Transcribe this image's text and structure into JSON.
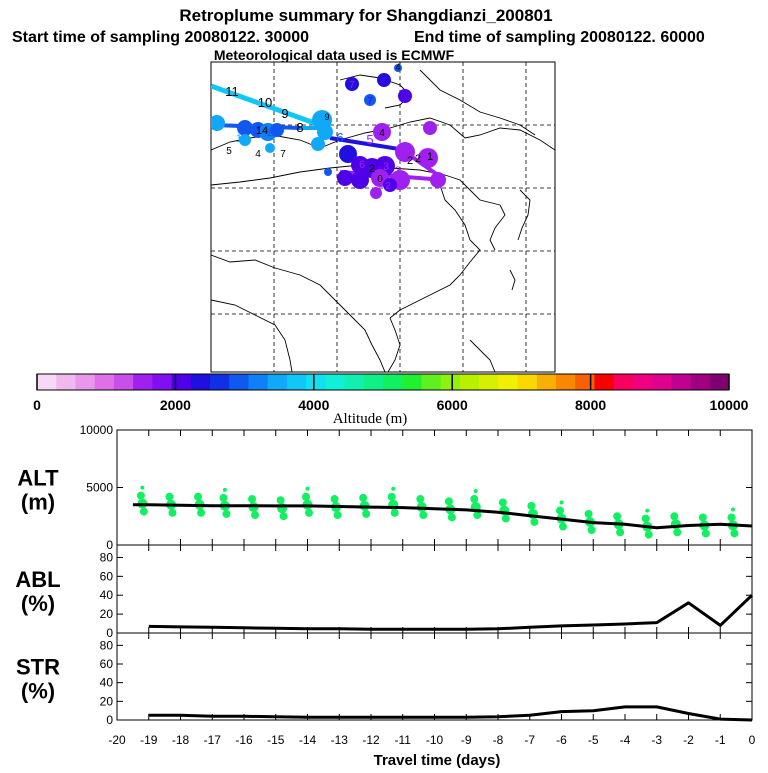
{
  "header": {
    "title": "Retroplume summary for Shangdianzi_200801",
    "start_label": "Start time of sampling 20080122. 30000",
    "end_label": "End time of sampling 20080122. 60000",
    "met_label": "Meteorological data used is ECMWF"
  },
  "colorbar": {
    "title": "Altitude (m)",
    "ticks": [
      "0",
      "2000",
      "4000",
      "6000",
      "8000",
      "10000"
    ],
    "colors": [
      "#f7d8f7",
      "#f0b8f0",
      "#e898e8",
      "#e070e8",
      "#c850e8",
      "#a020f0",
      "#8010f0",
      "#5000e8",
      "#2010e0",
      "#1030e8",
      "#1058f0",
      "#1080f8",
      "#10a8f8",
      "#10c8f8",
      "#10e0f0",
      "#10f0d8",
      "#10f0b0",
      "#10f088",
      "#10f060",
      "#20f030",
      "#60f020",
      "#90f010",
      "#b8f000",
      "#d8f000",
      "#f0f000",
      "#f8d800",
      "#f8b000",
      "#f88800",
      "#f86000",
      "#f80000",
      "#f80060",
      "#f00080",
      "#e00090",
      "#c00090",
      "#a00080",
      "#800070"
    ]
  },
  "map": {
    "labels": [
      {
        "t": "11",
        "c": "#000000"
      },
      {
        "t": "10",
        "c": "#000000"
      },
      {
        "t": "9",
        "c": "#000000"
      },
      {
        "t": "8",
        "c": "#000000"
      },
      {
        "t": "6",
        "c": "#10a8f8"
      },
      {
        "t": "5",
        "c": "#1058f0"
      },
      {
        "t": "14",
        "c": "#000000"
      },
      {
        "t": "13",
        "c": "#1058f0"
      },
      {
        "t": "10",
        "c": "#10a8f8"
      },
      {
        "t": "5",
        "c": "#000000"
      },
      {
        "t": "4",
        "c": "#000000"
      },
      {
        "t": "7",
        "c": "#000000"
      },
      {
        "t": "8",
        "c": "#10a8f8"
      },
      {
        "t": "9",
        "c": "#000000"
      },
      {
        "t": "6",
        "c": "#1058f0"
      },
      {
        "t": "5",
        "c": "#a020f0"
      },
      {
        "t": "4",
        "c": "#000000"
      },
      {
        "t": "8",
        "c": "#a020f0"
      },
      {
        "t": "2",
        "c": "#000000"
      },
      {
        "t": "1",
        "c": "#000000"
      },
      {
        "t": "7",
        "c": "#a020f0"
      },
      {
        "t": "8",
        "c": "#5000e8"
      },
      {
        "t": "7",
        "c": "#5000e8"
      },
      {
        "t": "4",
        "c": "#5000e8"
      },
      {
        "t": "4",
        "c": "#000000"
      },
      {
        "t": "6",
        "c": "#a020f0"
      },
      {
        "t": "2",
        "c": "#000000"
      },
      {
        "t": "3",
        "c": "#a020f0"
      },
      {
        "t": "3",
        "c": "#a020f0"
      },
      {
        "t": "9",
        "c": "#5000e8"
      },
      {
        "t": "0",
        "c": "#000000"
      },
      {
        "t": "2",
        "c": "#a020f0"
      },
      {
        "t": "1",
        "c": "#a020f0"
      },
      {
        "t": "0",
        "c": "#a020f0"
      },
      {
        "t": "2",
        "c": "#000000"
      }
    ]
  },
  "chart_data": [
    {
      "type": "line",
      "name": "ALT",
      "ylabel": "ALT",
      "yunit": "(m)",
      "ylim": [
        0,
        10000
      ],
      "yticks": [
        "0",
        "5000",
        "10000"
      ],
      "x": [
        -19.5,
        -19,
        -18,
        -17,
        -16,
        -15,
        -14,
        -13,
        -12,
        -11,
        -10,
        -9,
        -8,
        -7,
        -6,
        -5,
        -4,
        -3,
        -2.5,
        -2,
        -1,
        0
      ],
      "values": [
        3500,
        3500,
        3450,
        3420,
        3420,
        3400,
        3400,
        3350,
        3300,
        3250,
        3150,
        3050,
        2850,
        2550,
        2250,
        1950,
        1800,
        1500,
        1600,
        1700,
        1800,
        1650
      ],
      "scatter_x": [
        -19.2,
        -18.3,
        -17.4,
        -16.6,
        -15.7,
        -14.8,
        -14.0,
        -13.1,
        -12.2,
        -11.3,
        -10.4,
        -9.5,
        -8.7,
        -7.8,
        -6.9,
        -6.0,
        -5.1,
        -4.2,
        -3.3,
        -2.4,
        -1.5,
        -0.6
      ],
      "scatter_y": [
        3600,
        3500,
        3500,
        3400,
        3300,
        3200,
        3500,
        3300,
        3400,
        3500,
        3300,
        3100,
        3300,
        3000,
        2700,
        2300,
        2000,
        1800,
        1600,
        1800,
        1700,
        1700
      ],
      "color": "#10f060"
    },
    {
      "type": "line",
      "name": "ABL",
      "ylabel": "ABL",
      "yunit": "(%)",
      "ylim": [
        0,
        90
      ],
      "yticks": [
        "0",
        "20",
        "40",
        "60",
        "80"
      ],
      "x": [
        -19,
        -18,
        -17,
        -16,
        -15,
        -14,
        -13,
        -12,
        -11,
        -10,
        -9,
        -8,
        -7,
        -6,
        -5,
        -4,
        -3,
        -2,
        -1,
        0
      ],
      "values": [
        7,
        6.5,
        6,
        5.5,
        5,
        4.5,
        4.5,
        4,
        4,
        4,
        4,
        4.5,
        6,
        7.5,
        8.5,
        9.5,
        11,
        32,
        8,
        40
      ]
    },
    {
      "type": "line",
      "name": "STR",
      "ylabel": "STR",
      "yunit": "(%)",
      "ylim": [
        0,
        90
      ],
      "yticks": [
        "0",
        "20",
        "40",
        "60",
        "80"
      ],
      "x": [
        -19,
        -18,
        -17,
        -16,
        -15,
        -14,
        -13,
        -12,
        -11,
        -10,
        -9,
        -8,
        -7,
        -6,
        -5,
        -4,
        -3,
        -2,
        -1,
        0
      ],
      "values": [
        5,
        5,
        4,
        4,
        3.5,
        3,
        3,
        3,
        3,
        3,
        3,
        3.5,
        5,
        9,
        10,
        14,
        14,
        7,
        1,
        0
      ],
      "xlabel": "Travel time (days)",
      "xticks": [
        "-20",
        "-19",
        "-18",
        "-17",
        "-16",
        "-15",
        "-14",
        "-13",
        "-12",
        "-11",
        "-10",
        "-9",
        "-8",
        "-7",
        "-6",
        "-5",
        "-4",
        "-3",
        "-2",
        "-1",
        "0"
      ],
      "xlim": [
        -20,
        0
      ]
    }
  ]
}
